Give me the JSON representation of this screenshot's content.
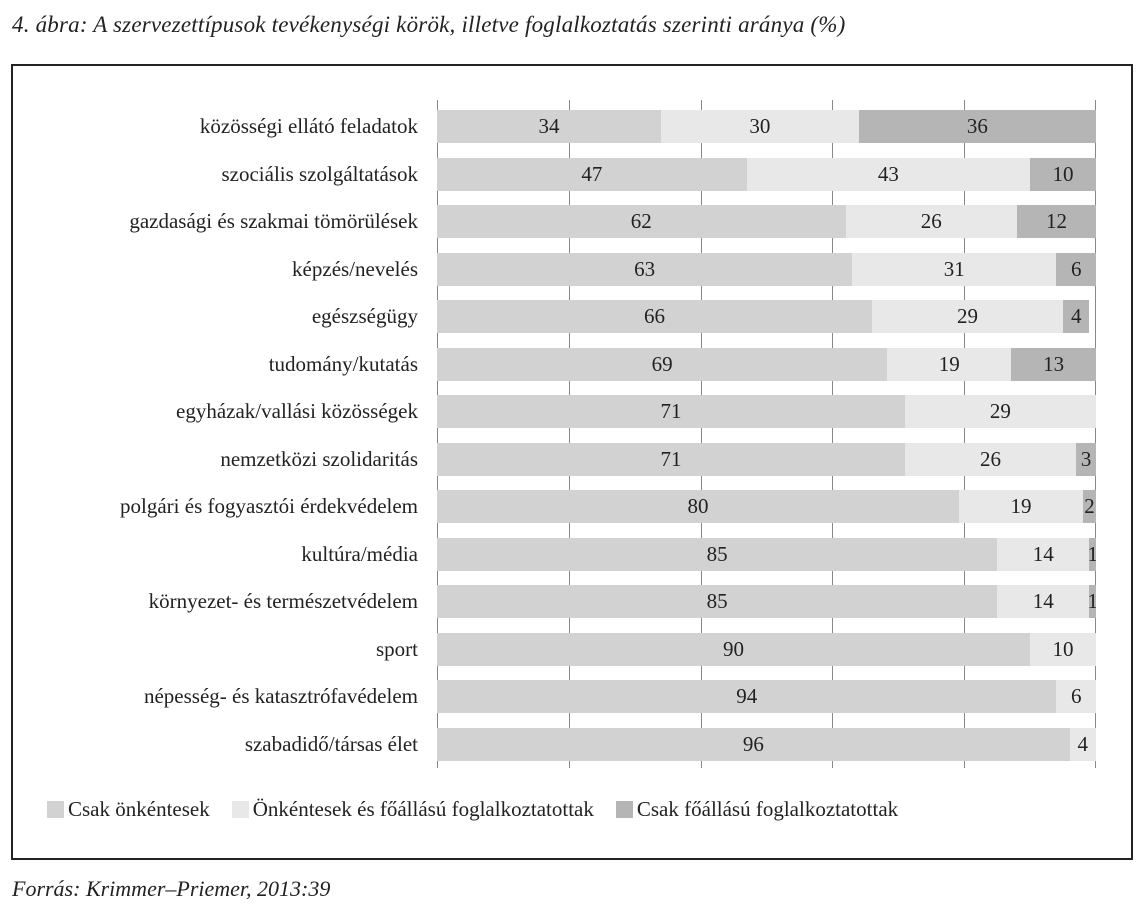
{
  "title": "4. ábra: A szervezettípusok tevékenységi körök, illetve foglalkoztatás szerinti aránya (%)",
  "source": "Forrás: Krimmer–Priemer, 2013:39",
  "colors": {
    "csak_onkentesek": "#d2d2d2",
    "vegyes": "#e8e8e8",
    "csak_foallasu": "#b5b5b5"
  },
  "chart_data": {
    "type": "bar",
    "orientation": "horizontal",
    "stacked": true,
    "title": "4. ábra: A szervezettípusok tevékenységi körök, illetve foglalkoztatás szerinti aránya (%)",
    "xlabel": "",
    "ylabel": "",
    "xlim": [
      0,
      100
    ],
    "grid": true,
    "legend_position": "bottom",
    "categories": [
      "közösségi ellátó feladatok",
      "szociális szolgáltatások",
      "gazdasági és szakmai tömörülések",
      "képzés/nevelés",
      "egészségügy",
      "tudomány/kutatás",
      "egyházak/vallási közösségek",
      "nemzetközi szolidaritás",
      "polgári és fogyasztói érdekvédelem",
      "kultúra/média",
      "környezet- és természetvédelem",
      "sport",
      "népesség- és katasztrófavédelem",
      "szabadidő/társas élet"
    ],
    "series": [
      {
        "name": "Csak önkéntesek",
        "values": [
          34,
          47,
          62,
          63,
          66,
          69,
          71,
          71,
          80,
          85,
          85,
          90,
          94,
          96
        ]
      },
      {
        "name": "Önkéntesek és főállású foglalkoztatottak",
        "values": [
          30,
          43,
          26,
          31,
          29,
          19,
          29,
          26,
          19,
          14,
          14,
          10,
          6,
          4
        ]
      },
      {
        "name": "Csak főállású foglalkoztatottak",
        "values": [
          36,
          10,
          12,
          6,
          4,
          13,
          0,
          3,
          2,
          1,
          1,
          0,
          0,
          0
        ]
      }
    ]
  }
}
